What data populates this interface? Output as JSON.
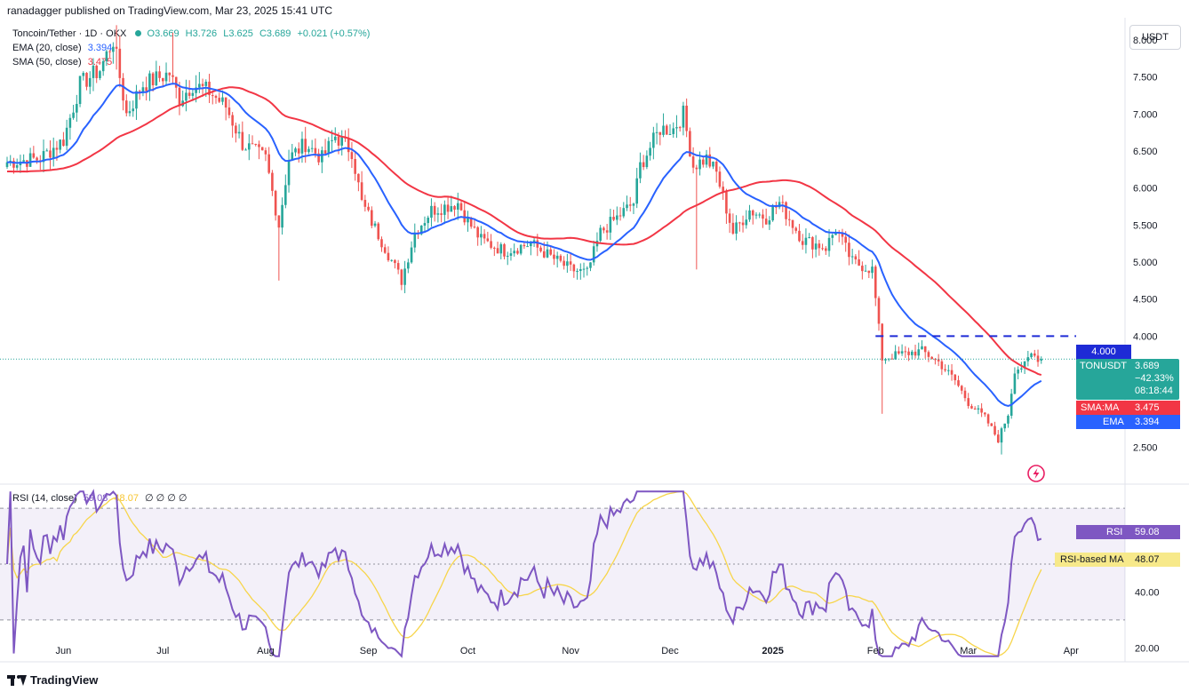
{
  "banner": "ranadagger published on TradingView.com, Mar 23, 2025 15:41 UTC",
  "legend": {
    "symbol": "Toncoin/Tether · 1D · OKX",
    "o": "O3.669",
    "h": "H3.726",
    "l": "L3.625",
    "c": "C3.689",
    "chg": "+0.021 (+0.57%)",
    "ema_label": "EMA (20, close)",
    "ema_val": "3.394",
    "sma_label": "SMA (50, close)",
    "sma_val": "3.475",
    "rsi_label": "RSI (14, close)",
    "rsi_val": "59.08",
    "rsi_ma_val": "48.07",
    "rsi_tail": "∅ ∅ ∅ ∅"
  },
  "currency": "USDT",
  "tags": {
    "symbol": "TONUSDT",
    "price": "3.689",
    "pct": "−42.33%",
    "countdown": "08:18:44",
    "sma_name": "SMA:MA",
    "sma_price": "3.475",
    "ema_name": "EMA",
    "ema_price": "3.394",
    "level": "4.000",
    "rsi_name": "RSI",
    "rsi_value": "59.08",
    "rsi_ma_name": "RSI-based MA",
    "rsi_ma_value": "48.07"
  },
  "footer": "TradingView",
  "colors": {
    "up": "#26a69a",
    "down": "#ef5350",
    "ema": "#2962ff",
    "sma": "#f23645",
    "rsi": "#7e57c2",
    "rsi_ma": "#f7d54a"
  },
  "chart_data": [
    {
      "type": "candlestick",
      "title": "Toncoin/Tether · 1D · OKX",
      "ylabel": "USDT",
      "ylim": [
        2.0,
        8.3
      ],
      "y_ticks": [
        "2.500",
        "3.000",
        "3.500",
        "4.000",
        "4.500",
        "5.000",
        "5.500",
        "6.000",
        "6.500",
        "7.000",
        "7.500",
        "8.000"
      ],
      "y_tick_values": [
        2.5,
        3.0,
        3.5,
        4.0,
        4.5,
        5.0,
        5.5,
        6.0,
        6.5,
        7.0,
        7.5,
        8.0
      ],
      "x_ticks": [
        "Jun",
        "Jul",
        "Aug",
        "Sep",
        "Oct",
        "Nov",
        "Dec",
        "2025",
        "Feb",
        "Mar",
        "Apr"
      ],
      "x_tick_dates": [
        "2024-06-01",
        "2024-07-01",
        "2024-08-01",
        "2024-09-01",
        "2024-10-01",
        "2024-11-01",
        "2024-12-01",
        "2025-01-01",
        "2025-02-01",
        "2025-03-01",
        "2025-04-01"
      ],
      "date_range": [
        "2024-05-15",
        "2025-03-23"
      ],
      "close_anchors": [
        [
          "2024-05-15",
          6.35
        ],
        [
          "2024-05-25",
          6.4
        ],
        [
          "2024-06-01",
          6.65
        ],
        [
          "2024-06-06",
          7.4
        ],
        [
          "2024-06-12",
          7.6
        ],
        [
          "2024-06-16",
          8.0
        ],
        [
          "2024-06-20",
          7.0
        ],
        [
          "2024-06-25",
          7.4
        ],
        [
          "2024-07-03",
          7.55
        ],
        [
          "2024-07-06",
          7.2
        ],
        [
          "2024-07-10",
          7.4
        ],
        [
          "2024-07-15",
          7.3
        ],
        [
          "2024-07-20",
          7.1
        ],
        [
          "2024-07-25",
          6.6
        ],
        [
          "2024-08-01",
          6.4
        ],
        [
          "2024-08-05",
          5.5
        ],
        [
          "2024-08-08",
          6.4
        ],
        [
          "2024-08-13",
          6.6
        ],
        [
          "2024-08-18",
          6.4
        ],
        [
          "2024-08-22",
          6.7
        ],
        [
          "2024-08-27",
          6.5
        ],
        [
          "2024-08-30",
          5.8
        ],
        [
          "2024-09-06",
          5.2
        ],
        [
          "2024-09-11",
          4.75
        ],
        [
          "2024-09-15",
          5.4
        ],
        [
          "2024-09-20",
          5.7
        ],
        [
          "2024-09-28",
          5.8
        ],
        [
          "2024-10-01",
          5.55
        ],
        [
          "2024-10-05",
          5.3
        ],
        [
          "2024-10-12",
          5.15
        ],
        [
          "2024-10-20",
          5.25
        ],
        [
          "2024-10-25",
          5.1
        ],
        [
          "2024-11-01",
          4.9
        ],
        [
          "2024-11-06",
          4.85
        ],
        [
          "2024-11-10",
          5.4
        ],
        [
          "2024-11-15",
          5.6
        ],
        [
          "2024-11-20",
          5.8
        ],
        [
          "2024-11-22",
          6.3
        ],
        [
          "2024-11-28",
          6.8
        ],
        [
          "2024-12-02",
          6.8
        ],
        [
          "2024-12-05",
          7.0
        ],
        [
          "2024-12-08",
          6.3
        ],
        [
          "2024-12-12",
          6.4
        ],
        [
          "2024-12-15",
          6.2
        ],
        [
          "2024-12-20",
          5.4
        ],
        [
          "2024-12-25",
          5.7
        ],
        [
          "2024-12-30",
          5.6
        ],
        [
          "2025-01-03",
          5.8
        ],
        [
          "2025-01-10",
          5.3
        ],
        [
          "2025-01-17",
          5.2
        ],
        [
          "2025-01-20",
          5.45
        ],
        [
          "2025-01-25",
          5.0
        ],
        [
          "2025-01-31",
          4.9
        ],
        [
          "2025-02-03",
          3.7
        ],
        [
          "2025-02-08",
          3.75
        ],
        [
          "2025-02-15",
          3.8
        ],
        [
          "2025-02-20",
          3.65
        ],
        [
          "2025-02-25",
          3.4
        ],
        [
          "2025-03-01",
          3.1
        ],
        [
          "2025-03-06",
          2.9
        ],
        [
          "2025-03-10",
          2.6
        ],
        [
          "2025-03-13",
          2.95
        ],
        [
          "2025-03-15",
          3.55
        ],
        [
          "2025-03-18",
          3.6
        ],
        [
          "2025-03-20",
          3.75
        ],
        [
          "2025-03-23",
          3.689
        ]
      ],
      "ohlc_last": {
        "open": 3.669,
        "high": 3.726,
        "low": 3.625,
        "close": 3.689
      },
      "wick_extremes": [
        [
          "2024-06-17",
          8.2,
          7.6
        ],
        [
          "2024-07-04",
          8.1,
          7.4
        ],
        [
          "2024-08-05",
          5.55,
          4.75
        ],
        [
          "2024-12-06",
          7.15,
          6.8
        ],
        [
          "2024-12-09",
          6.3,
          4.9
        ],
        [
          "2025-02-03",
          4.1,
          2.95
        ],
        [
          "2025-03-11",
          2.75,
          2.4
        ]
      ],
      "series": [
        {
          "name": "EMA (20, close)",
          "last": 3.394
        },
        {
          "name": "SMA (50, close)",
          "last": 3.475
        }
      ],
      "hline": {
        "value": 4.0,
        "style": "dashed"
      },
      "last_price": 3.689,
      "change": "−42.33%"
    },
    {
      "type": "line",
      "title": "RSI (14, close)",
      "ylim": [
        15,
        78
      ],
      "y_ticks": [
        "20.00",
        "40.00"
      ],
      "y_tick_values": [
        20,
        40
      ],
      "bands": {
        "upper": 70,
        "middle": 50,
        "lower": 30
      },
      "series": [
        {
          "name": "RSI (14, close)",
          "last": 59.08
        },
        {
          "name": "RSI-based MA",
          "last": 48.07
        }
      ]
    }
  ]
}
